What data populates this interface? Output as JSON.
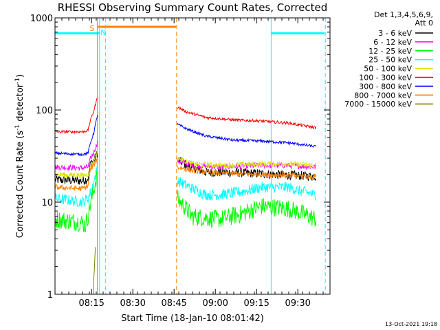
{
  "chart_data": {
    "type": "line",
    "title": "RHESSI Observing Summary Count Rates, Corrected",
    "xlabel": "Start Time (18-Jan-10 08:01:42)",
    "ylabel_main": "Corrected Count Rate (s",
    "ylabel_sup1": "-1",
    "ylabel_mid": " detector",
    "ylabel_sup2": "-1",
    "ylabel_end": ")",
    "yscale": "log",
    "xlim": [
      0,
      100
    ],
    "ylim": [
      1,
      1000
    ],
    "x_unit": "minutes after 08:01:42",
    "x_ticks": [
      {
        "value": 13.3,
        "label": "08:15"
      },
      {
        "value": 28.3,
        "label": "08:30"
      },
      {
        "value": 43.3,
        "label": "08:45"
      },
      {
        "value": 58.3,
        "label": "09:00"
      },
      {
        "value": 73.3,
        "label": "09:15"
      },
      {
        "value": 88.3,
        "label": "09:30"
      }
    ],
    "y_ticks": [
      {
        "value": 1,
        "label": "1"
      },
      {
        "value": 10,
        "label": "10"
      },
      {
        "value": 100,
        "label": "100"
      },
      {
        "value": 1000,
        "label": "1000"
      }
    ],
    "legend": {
      "header_line1": "Det 1,3,4,5,6,9,",
      "header_line2": "Att 0",
      "placement": "right"
    },
    "series": [
      {
        "name": "3 - 6 keV",
        "color": "#000000",
        "noise": 0.05,
        "points": [
          [
            0,
            17.5
          ],
          [
            10,
            17
          ],
          [
            12,
            18
          ],
          [
            13,
            27
          ],
          [
            14,
            28
          ],
          [
            15.5,
            34
          ]
        ],
        "points2": [
          [
            44.5,
            29
          ],
          [
            48,
            25
          ],
          [
            55,
            21
          ],
          [
            65,
            21
          ],
          [
            80,
            20
          ],
          [
            95,
            19
          ]
        ]
      },
      {
        "name": "6 - 12 keV",
        "color": "#ff00ff",
        "noise": 0.03,
        "points": [
          [
            0,
            24
          ],
          [
            10,
            23.5
          ],
          [
            12,
            24
          ],
          [
            13,
            30
          ],
          [
            14,
            34
          ],
          [
            15.5,
            45
          ]
        ],
        "points2": [
          [
            44.5,
            28
          ],
          [
            50,
            25
          ],
          [
            60,
            24
          ],
          [
            75,
            25
          ],
          [
            85,
            25
          ],
          [
            95,
            24
          ]
        ]
      },
      {
        "name": "12 - 25 keV",
        "color": "#00ff00",
        "noise": 0.1,
        "points": [
          [
            0,
            6.5
          ],
          [
            10,
            6
          ],
          [
            11,
            5.5
          ],
          [
            12,
            7
          ],
          [
            13,
            10
          ],
          [
            14,
            13
          ],
          [
            15.5,
            22
          ]
        ],
        "points2": [
          [
            44.5,
            11
          ],
          [
            50,
            7
          ],
          [
            60,
            6.5
          ],
          [
            68,
            7.5
          ],
          [
            75,
            9
          ],
          [
            85,
            8.5
          ],
          [
            90,
            7.5
          ],
          [
            95,
            6.5
          ]
        ]
      },
      {
        "name": "25 - 50 keV",
        "color": "#00ffff",
        "noise": 0.06,
        "points": [
          [
            0,
            11
          ],
          [
            10,
            10
          ],
          [
            12,
            11
          ],
          [
            13,
            13
          ],
          [
            14,
            16
          ],
          [
            15.5,
            24
          ]
        ],
        "points2": [
          [
            44.5,
            17
          ],
          [
            50,
            14
          ],
          [
            55,
            12
          ],
          [
            60,
            12
          ],
          [
            68,
            13
          ],
          [
            75,
            14.5
          ],
          [
            85,
            14.5
          ],
          [
            90,
            13
          ],
          [
            95,
            12
          ]
        ]
      },
      {
        "name": "50 - 100 keV",
        "color": "#e0e000",
        "noise": 0.03,
        "points": [
          [
            0,
            20
          ],
          [
            10,
            19.5
          ],
          [
            12,
            20
          ],
          [
            13,
            25
          ],
          [
            14,
            28
          ],
          [
            15.5,
            36
          ]
        ],
        "points2": [
          [
            44.5,
            30
          ],
          [
            50,
            26
          ],
          [
            60,
            25
          ],
          [
            75,
            26
          ],
          [
            85,
            26
          ],
          [
            95,
            25
          ]
        ]
      },
      {
        "name": "100 - 300 keV",
        "color": "#ff0000",
        "noise": 0.015,
        "points": [
          [
            0,
            58
          ],
          [
            10,
            58
          ],
          [
            12,
            60
          ],
          [
            13,
            80
          ],
          [
            14,
            95
          ],
          [
            15.5,
            140
          ],
          [
            15.6,
            175
          ]
        ],
        "points2": [
          [
            44.5,
            108
          ],
          [
            48,
            95
          ],
          [
            55,
            83
          ],
          [
            65,
            78
          ],
          [
            75,
            76
          ],
          [
            85,
            72
          ],
          [
            95,
            64
          ]
        ]
      },
      {
        "name": "300 - 800 keV",
        "color": "#0000ff",
        "noise": 0.015,
        "points": [
          [
            0,
            34
          ],
          [
            10,
            33
          ],
          [
            12,
            34
          ],
          [
            13,
            45
          ],
          [
            14,
            55
          ],
          [
            15.5,
            90
          ]
        ],
        "points2": [
          [
            44.5,
            70
          ],
          [
            48,
            62
          ],
          [
            55,
            52
          ],
          [
            65,
            47
          ],
          [
            75,
            46
          ],
          [
            85,
            44
          ],
          [
            95,
            40
          ]
        ]
      },
      {
        "name": "800 - 7000 keV",
        "color": "#ff8000",
        "noise": 0.03,
        "points": [
          [
            0,
            14.5
          ],
          [
            10,
            14
          ],
          [
            12,
            15
          ],
          [
            13,
            23
          ],
          [
            14,
            25
          ],
          [
            15.5,
            30
          ]
        ],
        "points2": [
          [
            44.5,
            24
          ],
          [
            50,
            22
          ],
          [
            60,
            20.5
          ],
          [
            75,
            20
          ],
          [
            85,
            19.5
          ],
          [
            95,
            19
          ]
        ]
      },
      {
        "name": "7000 - 15000 keV",
        "color": "#808000",
        "noise": 0.02,
        "points": [
          [
            13.8,
            0.9
          ],
          [
            14.2,
            1.6
          ],
          [
            14.5,
            2.6
          ],
          [
            14.8,
            3.5
          ]
        ],
        "points2": []
      }
    ],
    "annotations": [
      {
        "text": "S",
        "x": 13.5,
        "color": "#ff8000"
      },
      {
        "text": "N",
        "x": 17.6,
        "color": "#00ffff"
      }
    ],
    "saa_bar": {
      "start": 15.6,
      "end": 44.0,
      "level": 800,
      "color": "#ff8000"
    },
    "night_bars": [
      {
        "start": 0,
        "end": 16.5,
        "level": 680,
        "color": "#00ffff"
      },
      {
        "start": 78.5,
        "end": 98.0,
        "level": 680,
        "color": "#00ffff"
      }
    ],
    "vlines": [
      {
        "x": 15.4,
        "style": "solid",
        "color": "#ff8000"
      },
      {
        "x": 16.2,
        "style": "solid",
        "color": "#00ffff"
      },
      {
        "x": 18.4,
        "style": "dashed",
        "color": "#00ffff"
      },
      {
        "x": 44.2,
        "style": "dashed",
        "color": "#ff8000"
      },
      {
        "x": 78.6,
        "style": "solid",
        "color": "#00ffff"
      },
      {
        "x": 98.3,
        "style": "dashed",
        "color": "#00ffff"
      }
    ]
  },
  "footer": {
    "timestamp": "13-Oct-2021 19:18"
  }
}
